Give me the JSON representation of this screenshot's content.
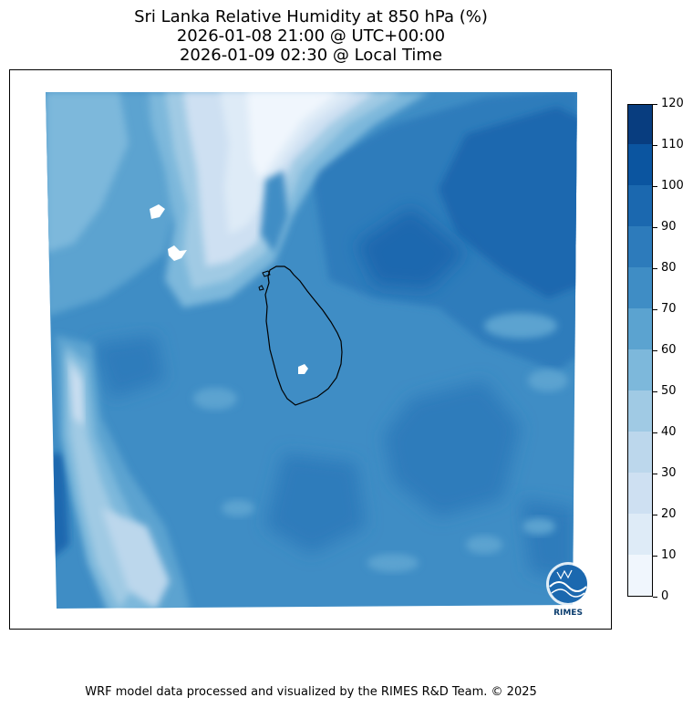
{
  "title": {
    "line1": "Sri Lanka Relative Humidity at 850 hPa (%)",
    "line2": "2026-01-08 21:00 @ UTC+00:00",
    "line3": "2026-01-09 02:30 @ Local Time"
  },
  "colorbar": {
    "ticks": [
      "0",
      "10",
      "20",
      "30",
      "40",
      "50",
      "60",
      "70",
      "80",
      "90",
      "100",
      "110",
      "120"
    ],
    "colors": [
      "#f0f6fd",
      "#deebf7",
      "#cee0f2",
      "#bcd7ec",
      "#a0cae4",
      "#7db8db",
      "#5ba3d0",
      "#3f8dc5",
      "#2d7bbb",
      "#1b68af",
      "#0b55a0",
      "#083d7f"
    ]
  },
  "logo": {
    "text": "RIMES",
    "icon": "rimes-globe-logo"
  },
  "footer": {
    "credit": "WRF model data processed and visualized by the RIMES R&D Team. © 2025"
  }
}
